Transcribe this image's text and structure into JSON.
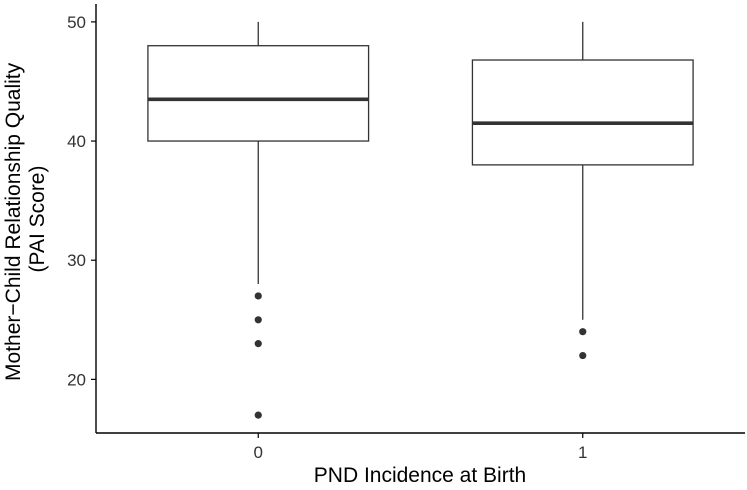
{
  "chart_data": {
    "type": "boxplot",
    "categories": [
      "0",
      "1"
    ],
    "boxes": [
      {
        "category": "0",
        "whisker_low": 28,
        "q1": 40,
        "median": 43.5,
        "q3": 48,
        "whisker_high": 50,
        "outliers": [
          27,
          25,
          23,
          17
        ]
      },
      {
        "category": "1",
        "whisker_low": 25,
        "q1": 38,
        "median": 41.5,
        "q3": 46.8,
        "whisker_high": 50,
        "outliers": [
          24,
          22
        ]
      }
    ],
    "xlabel": "PND Incidence at Birth",
    "ylabel_lines": [
      "Mother−Child Relationship Quality",
      "(PAI Score)"
    ],
    "ylim": [
      15.5,
      51.5
    ],
    "yticks": [
      20,
      30,
      40,
      50
    ],
    "grid": false
  }
}
